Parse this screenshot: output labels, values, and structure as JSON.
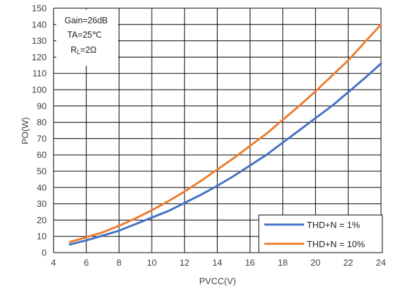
{
  "chart_data": {
    "type": "line",
    "xlabel": "PVCC(V)",
    "ylabel": "PO(W)",
    "xlim": [
      4,
      24
    ],
    "ylim": [
      0,
      150
    ],
    "x_ticks": [
      4,
      6,
      8,
      10,
      12,
      14,
      16,
      18,
      20,
      22,
      24
    ],
    "y_ticks": [
      0,
      10,
      20,
      30,
      40,
      50,
      60,
      70,
      80,
      90,
      100,
      110,
      120,
      130,
      140,
      150
    ],
    "grid": true,
    "legend_position": "bottom-right",
    "conditions": {
      "gain": "Gain=26dB",
      "ta": "TA=25℃",
      "rl_prefix": "R",
      "rl_sub": "L",
      "rl_rest": "=2Ω"
    },
    "series": [
      {
        "name": "THD+N = 1%",
        "color": "#4472C4",
        "x": [
          5,
          6,
          7,
          8,
          9,
          10,
          11,
          12,
          13,
          14,
          15,
          16,
          17,
          18,
          19,
          20,
          21,
          22,
          23,
          24
        ],
        "y": [
          5,
          7.5,
          10.5,
          13.5,
          17.5,
          21.5,
          25.5,
          30.5,
          35.5,
          41,
          47,
          53.5,
          60,
          67.5,
          75,
          82.5,
          90,
          98.5,
          107,
          116
        ]
      },
      {
        "name": "THD+N = 10%",
        "color": "#ED7D31",
        "x": [
          5,
          6,
          7,
          8,
          9,
          10,
          11,
          12,
          13,
          14,
          15,
          16,
          17,
          18,
          19,
          20,
          21,
          22,
          23,
          24
        ],
        "y": [
          6.5,
          9.5,
          12.5,
          16.5,
          21,
          26,
          31.5,
          37.5,
          44,
          51,
          58,
          65.5,
          73,
          81.5,
          90,
          99,
          108.5,
          118,
          129,
          140
        ]
      }
    ]
  }
}
